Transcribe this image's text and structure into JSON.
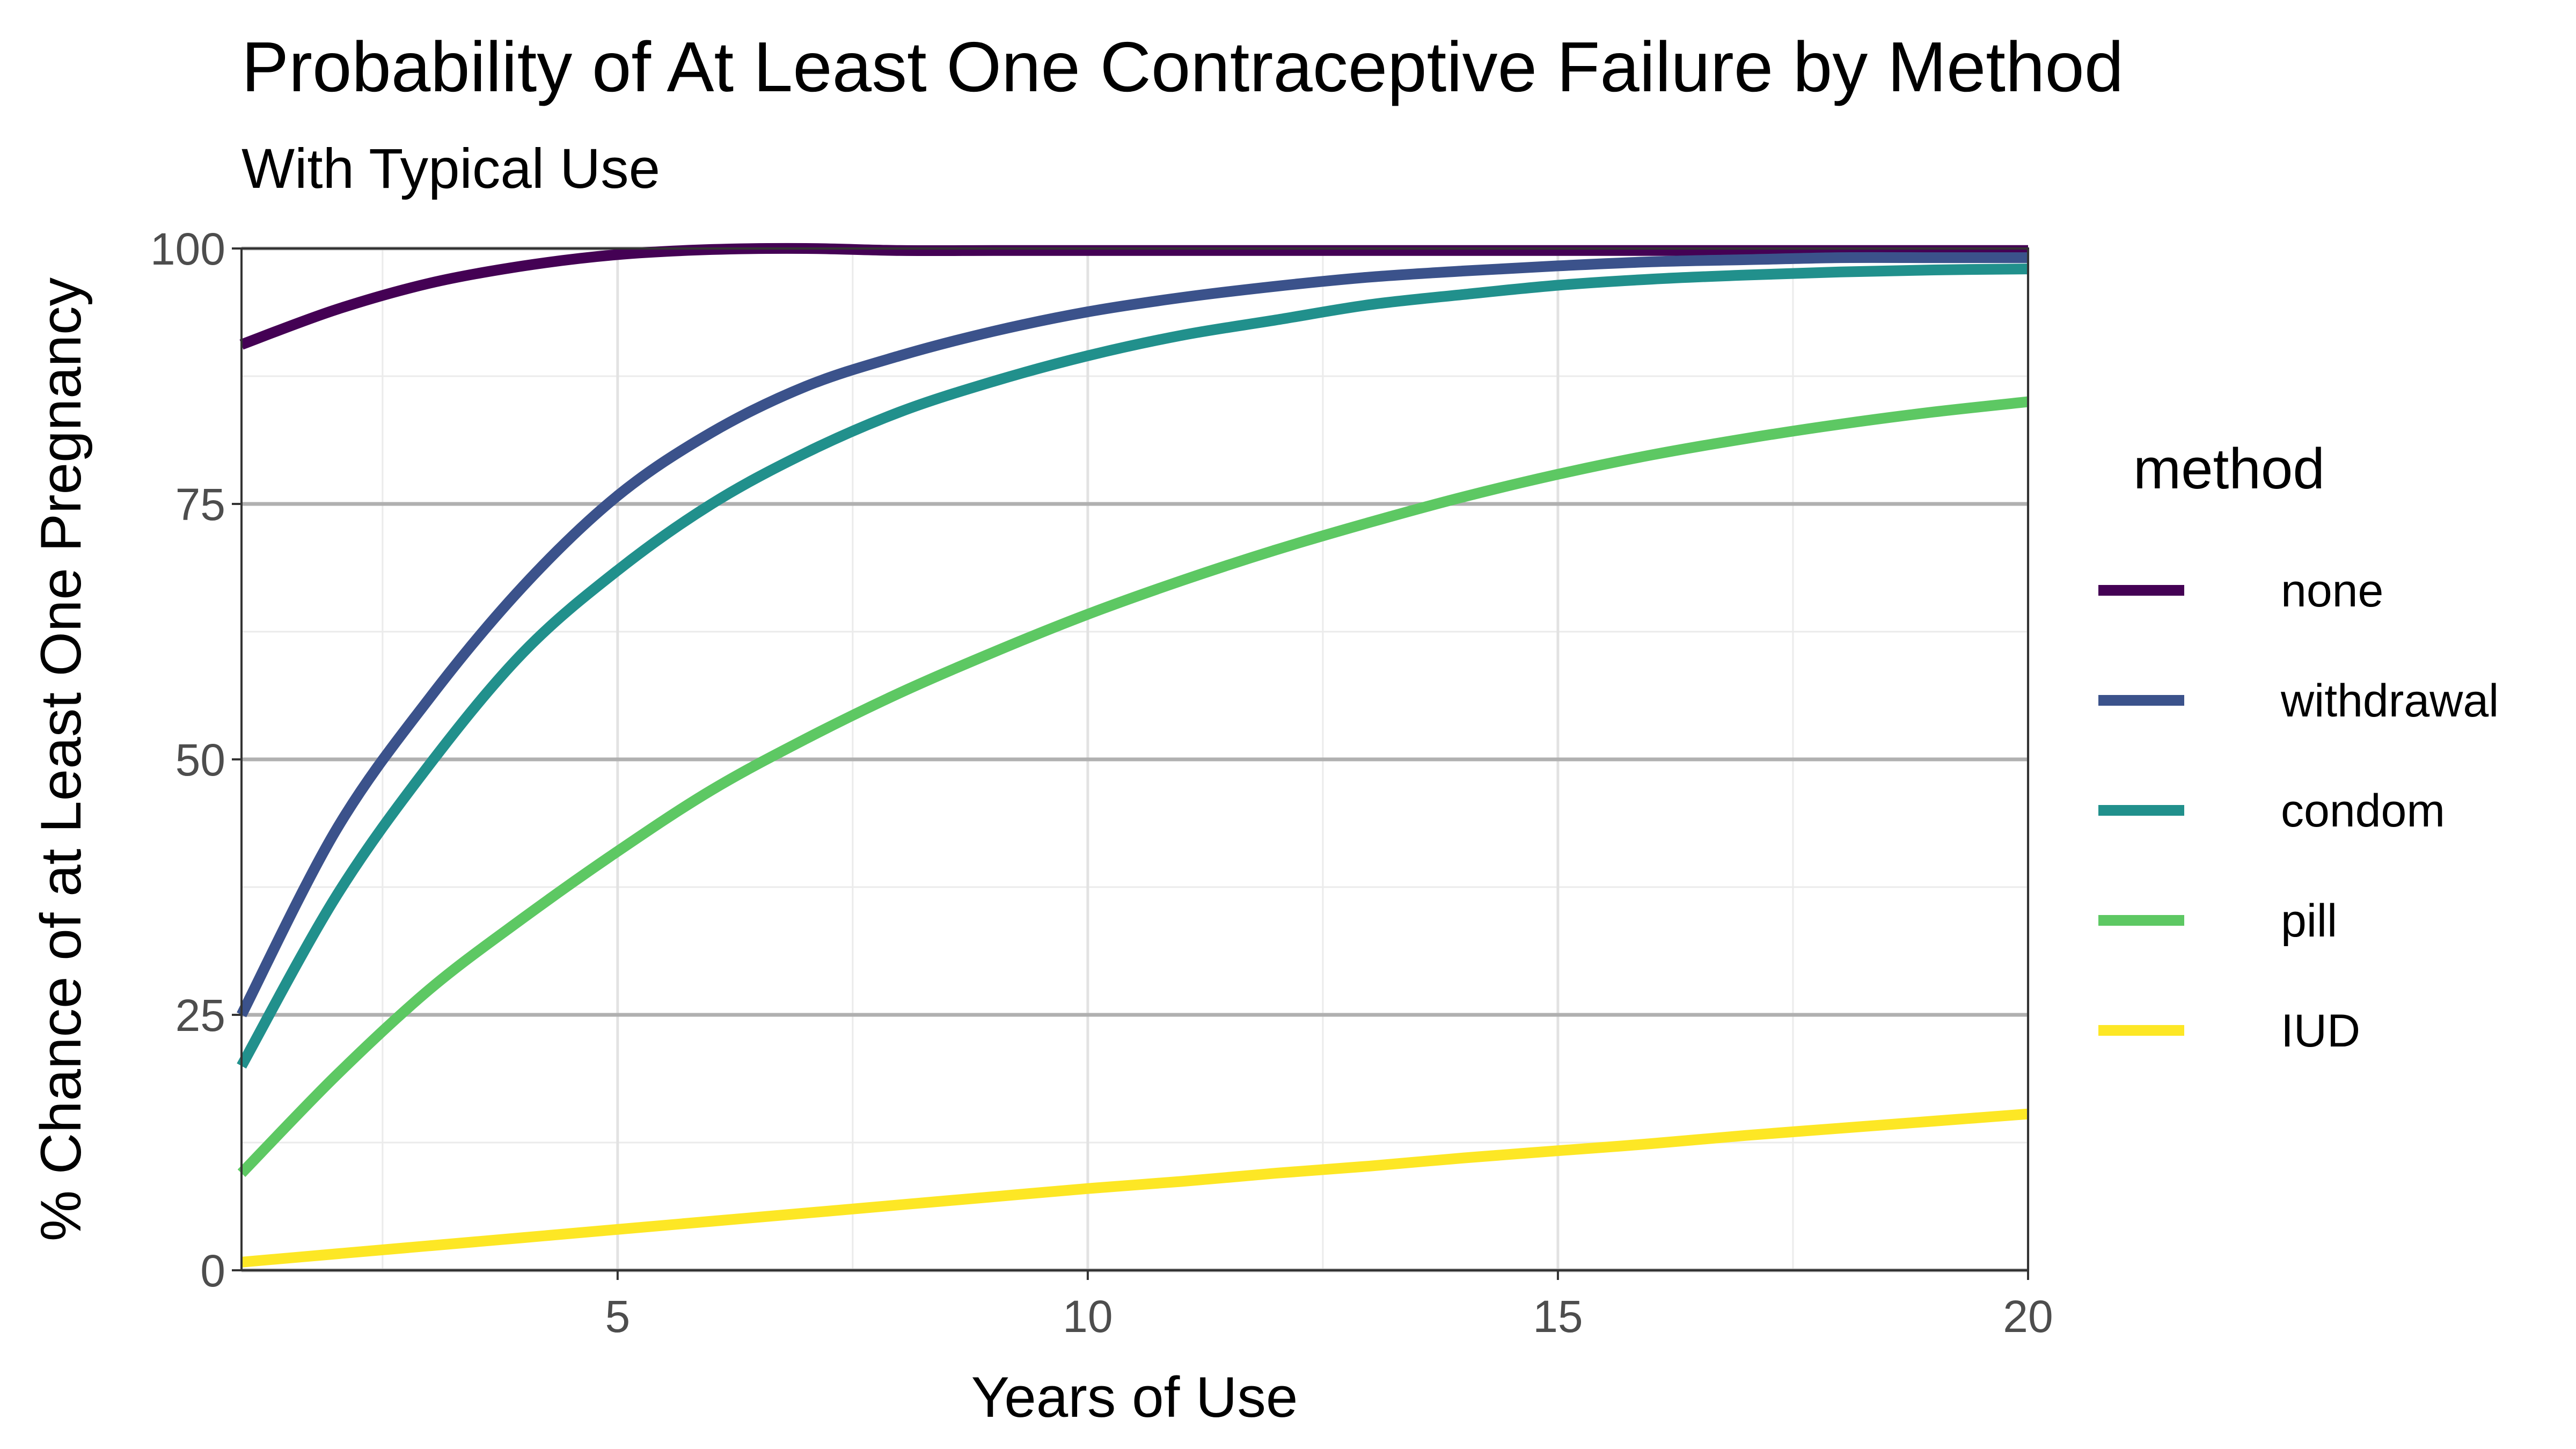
{
  "chart_data": {
    "type": "line",
    "title": "Probability of At Least One Contraceptive Failure by Method",
    "subtitle": "With Typical Use",
    "xlabel": "Years of Use",
    "ylabel": "% Chance of at Least One Pregnancy",
    "xlim": [
      1,
      20
    ],
    "ylim": [
      0,
      100
    ],
    "x_ticks": [
      "5",
      "10",
      "15",
      "20"
    ],
    "y_ticks": [
      "0",
      "25",
      "50",
      "75",
      "100"
    ],
    "grid": true,
    "legend": {
      "title": "method",
      "position": "right"
    },
    "x": [
      1,
      2,
      3,
      4,
      5,
      6,
      7,
      8,
      9,
      10,
      11,
      12,
      13,
      14,
      15,
      16,
      17,
      18,
      19,
      20
    ],
    "series": [
      {
        "name": "none",
        "color": "#440154",
        "values": [
          90.6,
          94,
          96.6,
          98.3,
          99.4,
          99.9,
          100,
          99.8,
          99.8,
          99.8,
          99.8,
          99.8,
          99.8,
          99.8,
          99.8,
          99.8,
          99.8,
          99.8,
          99.8,
          99.8
        ]
      },
      {
        "name": "withdrawal",
        "color": "#3b528b",
        "values": [
          25,
          43,
          56,
          67,
          75.8,
          82,
          86.5,
          89.5,
          91.9,
          93.8,
          95.2,
          96.3,
          97.2,
          97.8,
          98.3,
          98.7,
          98.9,
          99.1,
          99.1,
          99.1
        ]
      },
      {
        "name": "condom",
        "color": "#21908c",
        "values": [
          20,
          36.5,
          49.5,
          60.5,
          68.5,
          75,
          80,
          84,
          87,
          89.5,
          91.5,
          93,
          94.5,
          95.5,
          96.4,
          97,
          97.4,
          97.7,
          97.9,
          98
        ]
      },
      {
        "name": "pill",
        "color": "#5dc863",
        "values": [
          9.5,
          19,
          27.5,
          34.5,
          41,
          47,
          52,
          56.5,
          60.5,
          64.2,
          67.5,
          70.5,
          73.2,
          75.7,
          77.9,
          79.8,
          81.4,
          82.8,
          84,
          85
        ]
      },
      {
        "name": "IUD",
        "color": "#fde725",
        "values": [
          0.8,
          1.6,
          2.4,
          3.2,
          4,
          4.8,
          5.6,
          6.4,
          7.2,
          8,
          8.7,
          9.5,
          10.2,
          11,
          11.7,
          12.4,
          13.2,
          13.9,
          14.6,
          15.3
        ]
      }
    ]
  }
}
